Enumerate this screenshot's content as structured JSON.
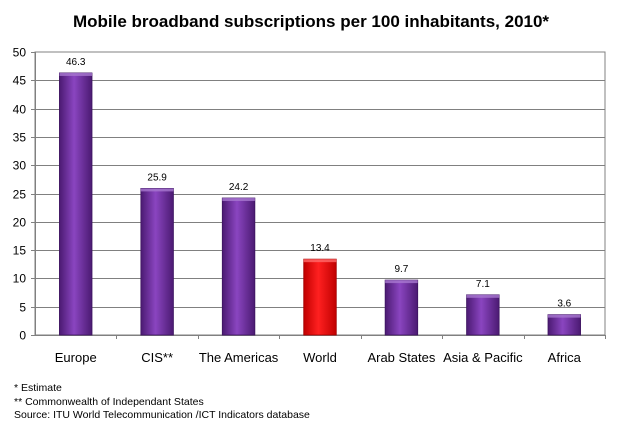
{
  "chart_data": {
    "type": "bar",
    "title": "Mobile broadband subscriptions per 100 inhabitants, 2010*",
    "categories": [
      "Europe",
      "CIS**",
      "The Americas",
      "World",
      "Arab States",
      "Asia & Pacific",
      "Africa"
    ],
    "values": [
      46.3,
      25.9,
      24.2,
      13.4,
      9.7,
      7.1,
      3.6
    ],
    "value_labels": [
      "46.3",
      "25.9",
      "24.2",
      "13.4",
      "9.7",
      "7.1",
      "3.6"
    ],
    "highlight_category": "World",
    "ylim": [
      0,
      50
    ],
    "yticks": [
      0,
      5,
      10,
      15,
      20,
      25,
      30,
      35,
      40,
      45,
      50
    ],
    "xlabel": "",
    "ylabel": "",
    "grid": true,
    "legend": "none",
    "colors": {
      "bar": "#7030a0",
      "highlight": "#ff0000",
      "grid": "#808080"
    }
  },
  "notes": [
    "* Estimate",
    "** Commonwealth of Independant States",
    "Source:  ITU World Telecommunication /ICT Indicators database"
  ]
}
